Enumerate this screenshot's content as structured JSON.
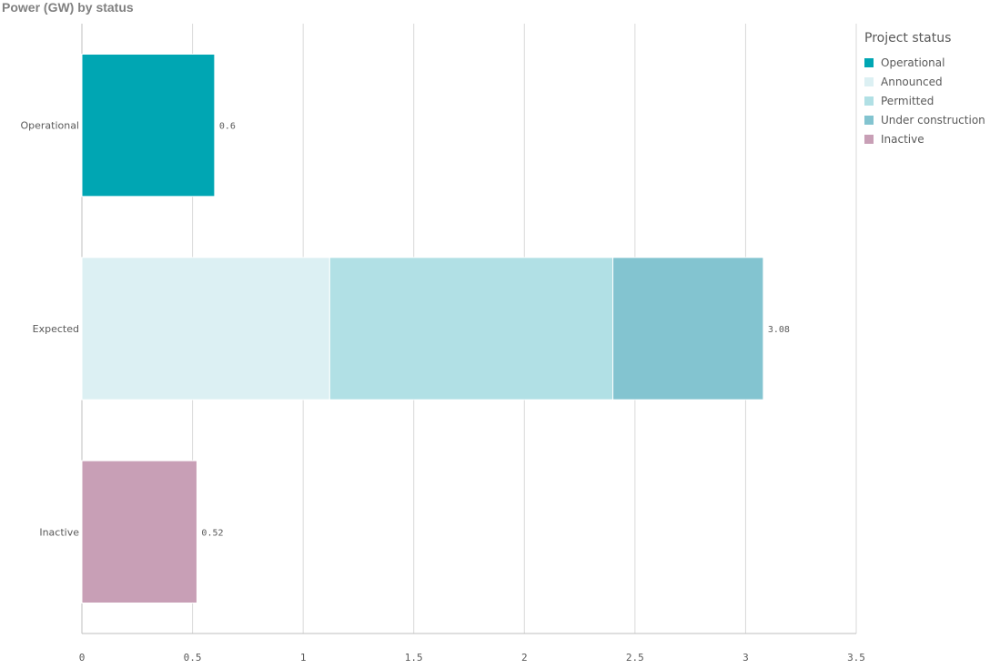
{
  "chart_data": {
    "type": "bar",
    "orientation": "horizontal",
    "stacked": true,
    "title": "Power (GW) by status",
    "categories": [
      "Operational",
      "Expected",
      "Inactive"
    ],
    "series": [
      {
        "name": "Operational",
        "color": "#00a6b3",
        "values": [
          0.6,
          0,
          0
        ]
      },
      {
        "name": "Announced",
        "color": "#dcf0f3",
        "values": [
          0,
          1.12,
          0
        ]
      },
      {
        "name": "Permitted",
        "color": "#b1e0e5",
        "values": [
          0,
          1.28,
          0
        ]
      },
      {
        "name": "Under construction",
        "color": "#83c4d0",
        "values": [
          0,
          0.68,
          0
        ]
      },
      {
        "name": "Inactive",
        "color": "#c89fb6",
        "values": [
          0,
          0,
          0.52
        ]
      }
    ],
    "totals": [
      "0.6",
      "3.08",
      "0.52"
    ],
    "xlim": [
      0,
      3.5
    ],
    "xticks": [
      "0",
      "0.5",
      "1",
      "1.5",
      "2",
      "2.5",
      "3",
      "3.5"
    ],
    "grid": true,
    "legend": {
      "title": "Project status",
      "position": "right"
    }
  }
}
